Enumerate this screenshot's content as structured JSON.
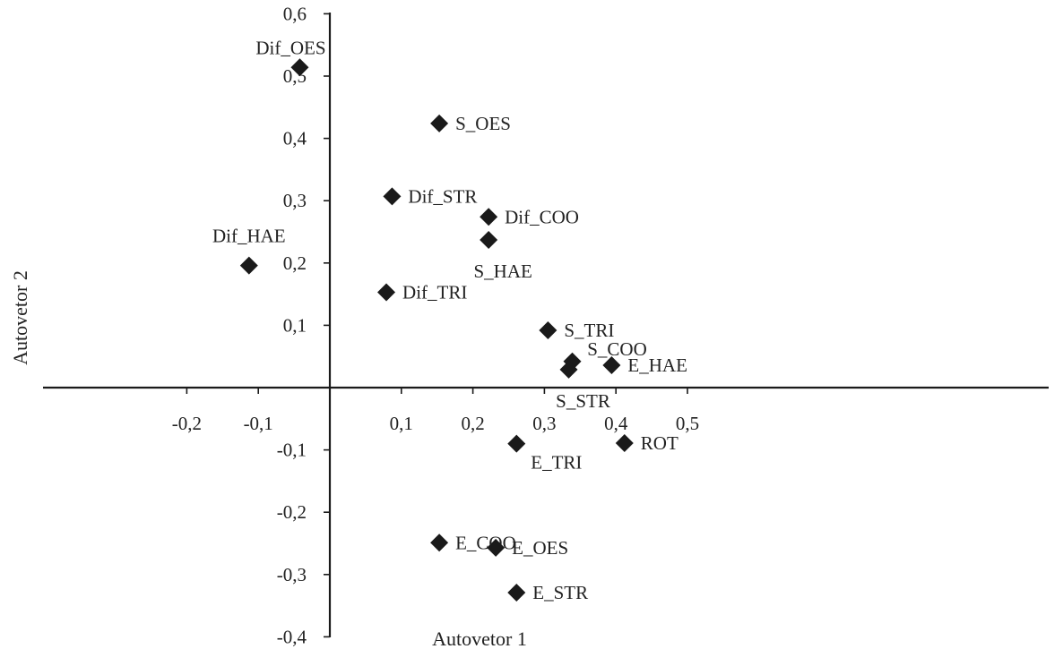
{
  "chart_data": {
    "type": "scatter",
    "xlabel": "Autovetor 1",
    "ylabel": "Autovetor 2",
    "xlim": [
      -0.2,
      0.5
    ],
    "ylim": [
      -0.4,
      0.6
    ],
    "grid": false,
    "legend": "none",
    "marker": "diamond",
    "marker_color": "#1a1a1a",
    "x_ticks": [
      {
        "value": -0.2,
        "label": "-0,2"
      },
      {
        "value": -0.1,
        "label": "-0,1"
      },
      {
        "value": 0.1,
        "label": "0,1"
      },
      {
        "value": 0.2,
        "label": "0,2"
      },
      {
        "value": 0.3,
        "label": "0,3"
      },
      {
        "value": 0.4,
        "label": "0,4"
      },
      {
        "value": 0.5,
        "label": "0,5"
      }
    ],
    "y_ticks": [
      {
        "value": 0.6,
        "label": "0,6"
      },
      {
        "value": 0.5,
        "label": "0,5"
      },
      {
        "value": 0.4,
        "label": "0,4"
      },
      {
        "value": 0.3,
        "label": "0,3"
      },
      {
        "value": 0.2,
        "label": "0,2"
      },
      {
        "value": 0.1,
        "label": "0,1"
      },
      {
        "value": -0.1,
        "label": "-0,1"
      },
      {
        "value": -0.2,
        "label": "-0,2"
      },
      {
        "value": -0.3,
        "label": "-0,3"
      },
      {
        "value": -0.4,
        "label": "-0,4"
      }
    ],
    "points": [
      {
        "label": "Dif_OES",
        "x": -0.042,
        "y": 0.514,
        "label_pos": "above-left"
      },
      {
        "label": "S_OES",
        "x": 0.153,
        "y": 0.424,
        "label_pos": "right"
      },
      {
        "label": "Dif_STR",
        "x": 0.087,
        "y": 0.307,
        "label_pos": "right"
      },
      {
        "label": "Dif_COO",
        "x": 0.222,
        "y": 0.274,
        "label_pos": "right"
      },
      {
        "label": "S_HAE",
        "x": 0.222,
        "y": 0.237,
        "label_pos": "below"
      },
      {
        "label": "Dif_HAE",
        "x": -0.113,
        "y": 0.196,
        "label_pos": "above"
      },
      {
        "label": "Dif_TRI",
        "x": 0.079,
        "y": 0.153,
        "label_pos": "right"
      },
      {
        "label": "S_TRI",
        "x": 0.305,
        "y": 0.092,
        "label_pos": "right"
      },
      {
        "label": "S_COO",
        "x": 0.339,
        "y": 0.042,
        "label_pos": "above-right"
      },
      {
        "label": "S_STR",
        "x": 0.334,
        "y": 0.029,
        "label_pos": "below"
      },
      {
        "label": "E_HAE",
        "x": 0.394,
        "y": 0.036,
        "label_pos": "right"
      },
      {
        "label": "E_TRI",
        "x": 0.261,
        "y": -0.09,
        "label_pos": "below-right"
      },
      {
        "label": "ROT",
        "x": 0.412,
        "y": -0.089,
        "label_pos": "right"
      },
      {
        "label": "E_COO",
        "x": 0.153,
        "y": -0.249,
        "label_pos": "right"
      },
      {
        "label": "E_OES",
        "x": 0.232,
        "y": -0.257,
        "label_pos": "right"
      },
      {
        "label": "E_STR",
        "x": 0.261,
        "y": -0.329,
        "label_pos": "right"
      }
    ]
  }
}
